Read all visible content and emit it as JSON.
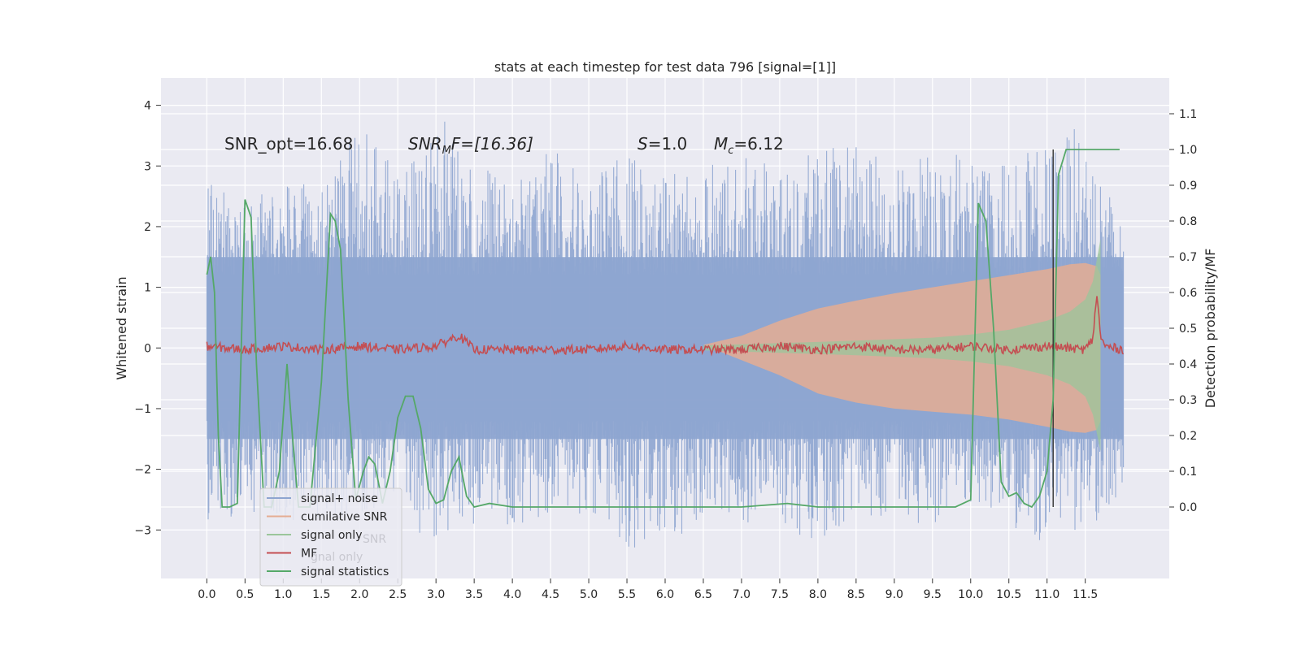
{
  "chart_data": {
    "type": "line",
    "title": "stats at each timestep for test data 796 [signal=[1]]",
    "ylabel": "Whitened strain",
    "ylabel_right": "Detection probability/MF",
    "xlim": [
      -0.6,
      12.6
    ],
    "ylim": [
      -3.8,
      4.45
    ],
    "ylim_right": [
      -0.2,
      1.2
    ],
    "x_ticks": [
      0.0,
      0.5,
      1.0,
      1.5,
      2.0,
      2.5,
      3.0,
      3.5,
      4.0,
      4.5,
      5.0,
      5.5,
      6.0,
      6.5,
      7.0,
      7.5,
      8.0,
      8.5,
      9.0,
      9.5,
      10.0,
      10.5,
      11.0,
      11.5
    ],
    "x_tick_labels": [
      "0.0",
      "0.5",
      "1.0",
      "1.5",
      "2.0",
      "2.5",
      "3.0",
      "3.5",
      "4.0",
      "4.5",
      "5.0",
      "5.5",
      "6.0",
      "6.5",
      "7.0",
      "7.5",
      "8.0",
      "8.5",
      "9.0",
      "9.5",
      "10.0",
      "10.5",
      "11.0",
      "11.5"
    ],
    "y_ticks": [
      -3,
      -2,
      -1,
      0,
      1,
      2,
      3,
      4
    ],
    "y_tick_labels": [
      "−3",
      "−2",
      "−1",
      "0",
      "1",
      "2",
      "3",
      "4"
    ],
    "y_right_ticks": [
      0.0,
      0.1,
      0.2,
      0.3,
      0.4,
      0.5,
      0.6,
      0.7,
      0.8,
      0.9,
      1.0,
      1.1
    ],
    "y_right_tick_labels": [
      "0.0",
      "0.1",
      "0.2",
      "0.3",
      "0.4",
      "0.5",
      "0.6",
      "0.7",
      "0.8",
      "0.9",
      "1.0",
      "1.1"
    ],
    "grid": true,
    "legend_position": "lower-left",
    "annotations": {
      "snr_opt": "SNR_opt=16.68",
      "snr_mf_main": "SNR",
      "snr_mf_sub": "M",
      "snr_mf_rest": "F=[16.36]",
      "s_var": "S",
      "s_rest": "=1.0",
      "mc_var": "M",
      "mc_sub": "c",
      "mc_rest": "=6.12"
    },
    "legend": [
      {
        "label": "signal+ noise",
        "color": "#8ea5d0"
      },
      {
        "label": "cumilative SNR",
        "color": "#e5ad93"
      },
      {
        "label": "signal only",
        "color": "#9bc69b"
      },
      {
        "label": "MF",
        "color": "#c44e52"
      },
      {
        "label": "signal statistics",
        "color": "#55a868"
      }
    ],
    "ghost_legend": {
      "snr": "SNR",
      "signal_only": "gnal only"
    },
    "series": [
      {
        "name": "signal+ noise",
        "axis": "left",
        "color": "#8ea5d0",
        "envelope_x": [
          0.0,
          0.5,
          1.0,
          1.5,
          2.0,
          2.5,
          3.0,
          3.5,
          4.0,
          4.5,
          5.0,
          5.5,
          6.0,
          6.5,
          7.0,
          7.5,
          8.0,
          8.5,
          9.0,
          9.5,
          10.0,
          10.5,
          11.0,
          11.5,
          12.0
        ],
        "envelope_max": [
          2.9,
          2.5,
          2.8,
          2.7,
          3.7,
          2.9,
          4.1,
          3.0,
          2.9,
          3.4,
          2.8,
          3.2,
          2.9,
          3.0,
          3.3,
          3.0,
          3.3,
          3.5,
          3.0,
          3.3,
          3.2,
          3.1,
          3.4,
          3.7,
          2.0
        ],
        "envelope_min": [
          -3.1,
          -2.7,
          -2.9,
          -2.8,
          -2.8,
          -2.6,
          -3.4,
          -2.9,
          -3.0,
          -2.7,
          -2.8,
          -3.3,
          -3.4,
          -2.8,
          -2.9,
          -2.9,
          -3.3,
          -2.7,
          -2.9,
          -2.9,
          -2.6,
          -2.9,
          -3.3,
          -3.0,
          -2.5
        ]
      },
      {
        "name": "cumilative SNR",
        "axis": "left",
        "color": "#e5ad93",
        "x": [
          6.5,
          7.0,
          7.5,
          8.0,
          8.5,
          9.0,
          9.5,
          10.0,
          10.5,
          11.0,
          11.3,
          11.5,
          11.65,
          11.7
        ],
        "upper": [
          0.05,
          0.2,
          0.45,
          0.65,
          0.78,
          0.9,
          1.0,
          1.1,
          1.2,
          1.3,
          1.38,
          1.4,
          1.35,
          1.2
        ],
        "lower": [
          0.05,
          -0.2,
          -0.45,
          -0.75,
          -0.9,
          -1.0,
          -1.05,
          -1.1,
          -1.18,
          -1.3,
          -1.38,
          -1.4,
          -1.35,
          -1.2
        ]
      },
      {
        "name": "signal only",
        "axis": "left",
        "color": "#9bc69b",
        "x": [
          6.5,
          7.5,
          8.5,
          9.5,
          10.0,
          10.5,
          11.0,
          11.3,
          11.5,
          11.6,
          11.7
        ],
        "upper": [
          0.04,
          0.08,
          0.12,
          0.17,
          0.22,
          0.3,
          0.45,
          0.6,
          0.8,
          1.1,
          1.8
        ],
        "lower": [
          -0.04,
          -0.08,
          -0.12,
          -0.17,
          -0.22,
          -0.3,
          -0.45,
          -0.6,
          -0.8,
          -1.1,
          -1.7
        ]
      },
      {
        "name": "MF",
        "axis": "right",
        "color": "#c44e52",
        "x": [
          0.0,
          0.5,
          1.0,
          1.5,
          2.0,
          2.5,
          3.0,
          3.3,
          3.5,
          4.0,
          4.5,
          5.0,
          5.5,
          6.0,
          6.5,
          7.0,
          7.5,
          8.0,
          8.5,
          9.0,
          9.5,
          10.0,
          10.5,
          11.0,
          11.5,
          11.6,
          11.65,
          11.7,
          11.75,
          12.0
        ],
        "values": [
          0.45,
          0.44,
          0.45,
          0.44,
          0.45,
          0.44,
          0.45,
          0.48,
          0.44,
          0.44,
          0.44,
          0.44,
          0.45,
          0.44,
          0.44,
          0.44,
          0.45,
          0.44,
          0.45,
          0.44,
          0.44,
          0.45,
          0.44,
          0.45,
          0.44,
          0.47,
          0.6,
          0.48,
          0.45,
          0.44
        ]
      },
      {
        "name": "signal statistics",
        "axis": "right",
        "color": "#55a868",
        "x": [
          0.0,
          0.05,
          0.1,
          0.15,
          0.2,
          0.3,
          0.4,
          0.5,
          0.58,
          0.65,
          0.75,
          0.85,
          0.95,
          1.05,
          1.12,
          1.2,
          1.35,
          1.5,
          1.62,
          1.68,
          1.75,
          1.85,
          1.95,
          2.05,
          2.12,
          2.2,
          2.3,
          2.4,
          2.5,
          2.6,
          2.7,
          2.8,
          2.9,
          3.0,
          3.1,
          3.2,
          3.3,
          3.4,
          3.5,
          3.7,
          4.0,
          4.5,
          5.0,
          5.5,
          6.0,
          6.5,
          7.0,
          7.6,
          8.0,
          9.0,
          9.8,
          10.0,
          10.1,
          10.2,
          10.3,
          10.4,
          10.5,
          10.6,
          10.7,
          10.8,
          10.9,
          11.0,
          11.08,
          11.15,
          11.25,
          11.4,
          11.6,
          11.8,
          11.95
        ],
        "values": [
          0.65,
          0.7,
          0.6,
          0.2,
          0.0,
          0.0,
          0.01,
          0.86,
          0.81,
          0.4,
          0.0,
          0.0,
          0.1,
          0.4,
          0.2,
          0.0,
          0.0,
          0.35,
          0.82,
          0.8,
          0.72,
          0.3,
          0.02,
          0.1,
          0.14,
          0.12,
          0.01,
          0.1,
          0.25,
          0.31,
          0.31,
          0.22,
          0.05,
          0.01,
          0.02,
          0.1,
          0.14,
          0.03,
          0.0,
          0.01,
          0.0,
          0.0,
          0.0,
          0.0,
          0.0,
          0.0,
          0.0,
          0.01,
          0.0,
          0.0,
          0.0,
          0.02,
          0.85,
          0.8,
          0.5,
          0.07,
          0.03,
          0.04,
          0.01,
          0.0,
          0.03,
          0.1,
          0.3,
          0.93,
          1.0,
          1.0,
          1.0,
          1.0,
          1.0
        ]
      }
    ],
    "vertical_marker": {
      "x": 11.08,
      "ymin_right": 0.0,
      "ymax_right": 1.0,
      "color": "#333333"
    }
  }
}
